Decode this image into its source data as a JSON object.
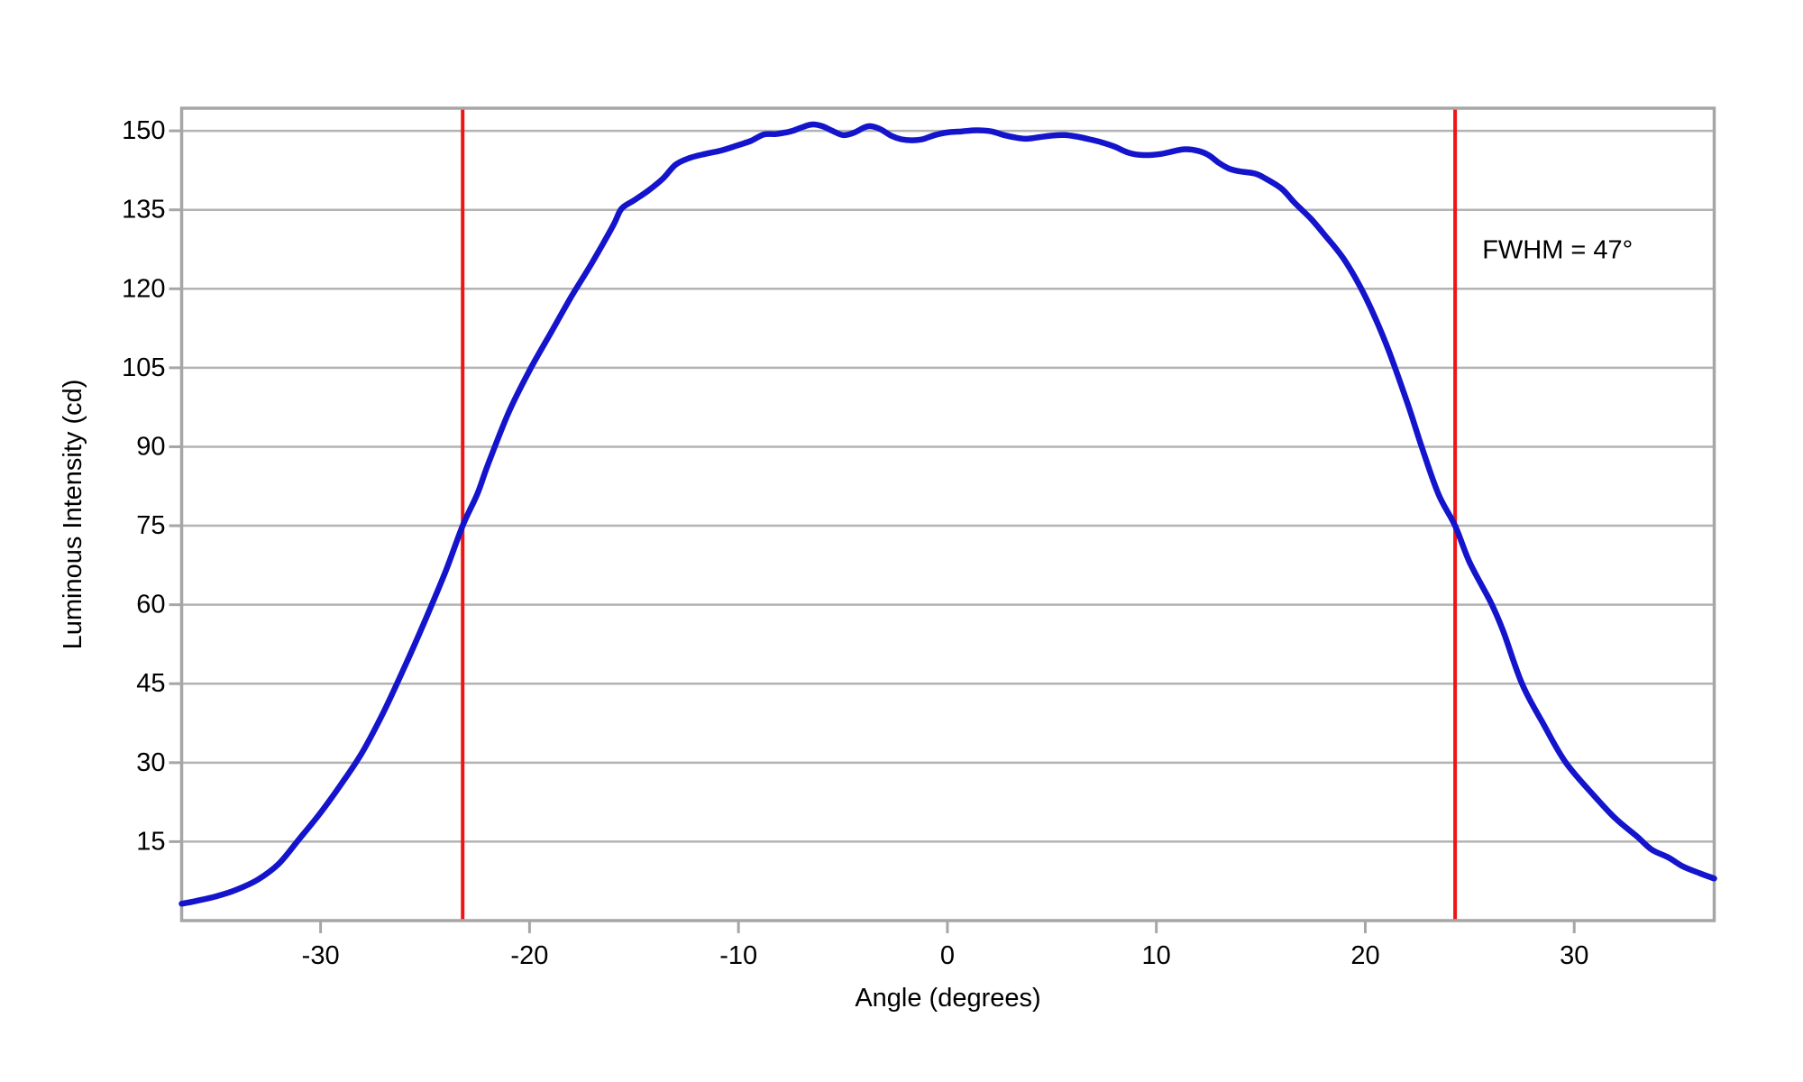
{
  "figure": {
    "background_color": "#ffffff",
    "plot_border_color": "#a6a6a6",
    "gridline_color": "#b3b3b3",
    "text_color": "#000000"
  },
  "chart_data": {
    "type": "line",
    "title": "",
    "xlabel": "Angle (degrees)",
    "ylabel": "Luminous Intensity (cd)",
    "xlim": [
      -36.65,
      36.7
    ],
    "ylim": [
      0,
      154.3
    ],
    "x_ticks": [
      -30,
      -20,
      -10,
      0,
      10,
      20,
      30
    ],
    "x_tick_labels": [
      "-30",
      "-20",
      "-10",
      "0",
      "10",
      "20",
      "30"
    ],
    "y_ticks": [
      15,
      30,
      45,
      60,
      75,
      90,
      105,
      120,
      135,
      150
    ],
    "y_tick_labels": [
      "15",
      "30",
      "45",
      "60",
      "75",
      "90",
      "105",
      "120",
      "135",
      "150"
    ],
    "grid": "horizontal",
    "legend": "none",
    "series": [
      {
        "name": "luminous-intensity",
        "color": "#1414cd",
        "line_width": 6.5,
        "points": [
          [
            -36.65,
            3.2
          ],
          [
            -36,
            3.7
          ],
          [
            -35,
            4.6
          ],
          [
            -34,
            5.9
          ],
          [
            -33,
            7.8
          ],
          [
            -32,
            10.8
          ],
          [
            -31,
            15.6
          ],
          [
            -30,
            20.5
          ],
          [
            -29,
            26.0
          ],
          [
            -28,
            32.0
          ],
          [
            -27,
            39.5
          ],
          [
            -26,
            48.0
          ],
          [
            -25,
            57.0
          ],
          [
            -24,
            66.5
          ],
          [
            -23.2,
            75.0
          ],
          [
            -22.5,
            81.0
          ],
          [
            -22,
            86.5
          ],
          [
            -21,
            96.5
          ],
          [
            -20,
            104.5
          ],
          [
            -19,
            111.5
          ],
          [
            -18,
            118.5
          ],
          [
            -17,
            125.0
          ],
          [
            -16,
            132.0
          ],
          [
            -15.6,
            135.2
          ],
          [
            -15,
            136.8
          ],
          [
            -14.3,
            138.7
          ],
          [
            -13.6,
            141.0
          ],
          [
            -13,
            143.6
          ],
          [
            -12.3,
            144.9
          ],
          [
            -11.5,
            145.7
          ],
          [
            -10.8,
            146.3
          ],
          [
            -10,
            147.3
          ],
          [
            -9.4,
            148.1
          ],
          [
            -8.8,
            149.3
          ],
          [
            -8.2,
            149.4
          ],
          [
            -7.5,
            149.9
          ],
          [
            -7,
            150.6
          ],
          [
            -6.5,
            151.2
          ],
          [
            -6,
            150.9
          ],
          [
            -5.5,
            150.0
          ],
          [
            -5,
            149.2
          ],
          [
            -4.5,
            149.6
          ],
          [
            -4,
            150.6
          ],
          [
            -3.7,
            150.9
          ],
          [
            -3.2,
            150.3
          ],
          [
            -2.7,
            149.1
          ],
          [
            -2.2,
            148.4
          ],
          [
            -1.7,
            148.2
          ],
          [
            -1.2,
            148.4
          ],
          [
            -0.6,
            149.2
          ],
          [
            0,
            149.7
          ],
          [
            0.7,
            149.9
          ],
          [
            1.4,
            150.1
          ],
          [
            2.1,
            149.9
          ],
          [
            2.7,
            149.2
          ],
          [
            3.3,
            148.7
          ],
          [
            3.8,
            148.5
          ],
          [
            4.4,
            148.8
          ],
          [
            5,
            149.1
          ],
          [
            5.6,
            149.2
          ],
          [
            6.2,
            148.9
          ],
          [
            6.8,
            148.4
          ],
          [
            7.4,
            147.8
          ],
          [
            8,
            147.0
          ],
          [
            8.7,
            145.8
          ],
          [
            9.4,
            145.4
          ],
          [
            10.2,
            145.6
          ],
          [
            10.9,
            146.2
          ],
          [
            11.4,
            146.5
          ],
          [
            12,
            146.2
          ],
          [
            12.5,
            145.4
          ],
          [
            13,
            143.9
          ],
          [
            13.5,
            142.8
          ],
          [
            14,
            142.3
          ],
          [
            14.7,
            141.9
          ],
          [
            15.2,
            141.0
          ],
          [
            16,
            139.0
          ],
          [
            16.6,
            136.4
          ],
          [
            17.4,
            133.3
          ],
          [
            18,
            130.5
          ],
          [
            19,
            125.5
          ],
          [
            20,
            118.5
          ],
          [
            21,
            109.5
          ],
          [
            22,
            98.5
          ],
          [
            22.7,
            90.0
          ],
          [
            23.5,
            81.0
          ],
          [
            24.3,
            75.0
          ],
          [
            25,
            68.0
          ],
          [
            26,
            60.5
          ],
          [
            26.6,
            55.0
          ],
          [
            27.5,
            45.0
          ],
          [
            28.5,
            37.5
          ],
          [
            29.6,
            30.0
          ],
          [
            31,
            23.5
          ],
          [
            32,
            19.3
          ],
          [
            33,
            16.0
          ],
          [
            33.7,
            13.5
          ],
          [
            34.5,
            12.0
          ],
          [
            35.2,
            10.3
          ],
          [
            36,
            9.0
          ],
          [
            36.7,
            8.0
          ]
        ]
      }
    ],
    "reference_lines": [
      {
        "name": "fwhm-left",
        "x": -23.2,
        "color": "#ee1515",
        "line_width": 4
      },
      {
        "name": "fwhm-right",
        "x": 24.3,
        "color": "#ee1515",
        "line_width": 4
      }
    ],
    "annotations": [
      {
        "name": "fwhm-label",
        "text": "FWHM = 47°",
        "x": 25.6,
        "y": 127.3
      }
    ]
  }
}
